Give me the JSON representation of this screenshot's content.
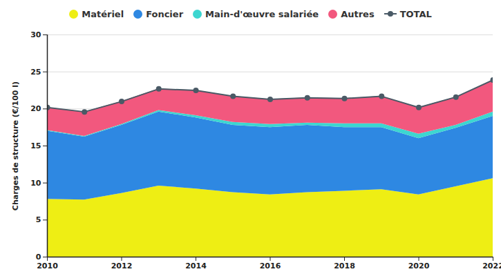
{
  "chart_data": {
    "type": "area",
    "stacked": true,
    "ylabel": "Charges de structure (€/100 l)",
    "x": [
      2010,
      2011,
      2012,
      2013,
      2014,
      2015,
      2016,
      2017,
      2018,
      2019,
      2020,
      2021,
      2022
    ],
    "xlim": [
      2010,
      2022
    ],
    "xticks": [
      2010,
      2012,
      2014,
      2016,
      2018,
      2020,
      2022
    ],
    "ylim": [
      0,
      30
    ],
    "yticks": [
      0,
      5,
      10,
      15,
      20,
      25,
      30
    ],
    "grid": true,
    "legend": "top",
    "series": [
      {
        "name": "Matériel",
        "color": "#eeee14",
        "values": [
          7.8,
          7.7,
          8.6,
          9.6,
          9.2,
          8.7,
          8.4,
          8.7,
          8.9,
          9.1,
          8.4,
          9.5,
          10.6
        ]
      },
      {
        "name": "Foncier",
        "color": "#2e88e2",
        "values": [
          9.2,
          8.5,
          9.2,
          10.0,
          9.6,
          9.1,
          9.1,
          9.1,
          8.6,
          8.4,
          7.6,
          7.9,
          8.4
        ]
      },
      {
        "name": "Main-d'œuvre salariée",
        "color": "#3dd6d0",
        "values": [
          0.1,
          0.1,
          0.1,
          0.2,
          0.3,
          0.4,
          0.4,
          0.3,
          0.5,
          0.5,
          0.6,
          0.4,
          0.6
        ]
      },
      {
        "name": "Autres",
        "color": "#f2587e",
        "values": [
          3.1,
          3.3,
          3.1,
          2.9,
          3.4,
          3.5,
          3.4,
          3.4,
          3.4,
          3.7,
          3.6,
          3.8,
          4.3
        ]
      },
      {
        "name": "TOTAL",
        "color": "#4a5a66",
        "type": "line",
        "marker": "circle",
        "values": [
          20.2,
          19.6,
          21.0,
          22.7,
          22.5,
          21.7,
          21.3,
          21.5,
          21.4,
          21.7,
          20.2,
          21.6,
          23.9
        ]
      }
    ]
  }
}
